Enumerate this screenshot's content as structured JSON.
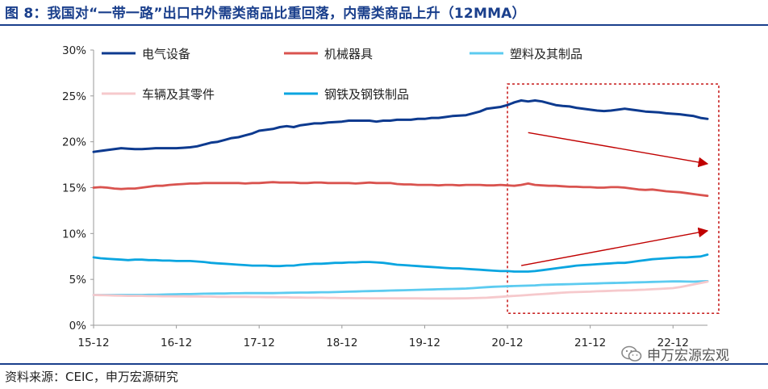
{
  "figure": {
    "title": "图 8：我国对“一带一路”出口中外需类商品比重回落，内需类商品上升（12MMA）",
    "source": "资料来源：CEIC，申万宏源研究",
    "watermark": "申万宏源宏观",
    "watermark_icon": "wechat-icon"
  },
  "chart_data": {
    "type": "line",
    "ylim": [
      0,
      30
    ],
    "yticks": [
      "0%",
      "5%",
      "10%",
      "15%",
      "20%",
      "25%",
      "30%"
    ],
    "ytick_values": [
      0,
      5,
      10,
      15,
      20,
      25,
      30
    ],
    "xticks": [
      "15-12",
      "16-12",
      "17-12",
      "18-12",
      "19-12",
      "20-12",
      "21-12",
      "22-12"
    ],
    "x_months": [
      "2015-12",
      "2016-01",
      "2016-02",
      "2016-03",
      "2016-04",
      "2016-05",
      "2016-06",
      "2016-07",
      "2016-08",
      "2016-09",
      "2016-10",
      "2016-11",
      "2016-12",
      "2017-01",
      "2017-02",
      "2017-03",
      "2017-04",
      "2017-05",
      "2017-06",
      "2017-07",
      "2017-08",
      "2017-09",
      "2017-10",
      "2017-11",
      "2017-12",
      "2018-01",
      "2018-02",
      "2018-03",
      "2018-04",
      "2018-05",
      "2018-06",
      "2018-07",
      "2018-08",
      "2018-09",
      "2018-10",
      "2018-11",
      "2018-12",
      "2019-01",
      "2019-02",
      "2019-03",
      "2019-04",
      "2019-05",
      "2019-06",
      "2019-07",
      "2019-08",
      "2019-09",
      "2019-10",
      "2019-11",
      "2019-12",
      "2020-01",
      "2020-02",
      "2020-03",
      "2020-04",
      "2020-05",
      "2020-06",
      "2020-07",
      "2020-08",
      "2020-09",
      "2020-10",
      "2020-11",
      "2020-12",
      "2021-01",
      "2021-02",
      "2021-03",
      "2021-04",
      "2021-05",
      "2021-06",
      "2021-07",
      "2021-08",
      "2021-09",
      "2021-10",
      "2021-11",
      "2021-12",
      "2022-01",
      "2022-02",
      "2022-03",
      "2022-04",
      "2022-05",
      "2022-06",
      "2022-07",
      "2022-08",
      "2022-09",
      "2022-10",
      "2022-11",
      "2022-12",
      "2023-01",
      "2023-02",
      "2023-03",
      "2023-04",
      "2023-05"
    ],
    "series": [
      {
        "name": "电气设备",
        "color": "#0d3a8f",
        "values": [
          18.9,
          19.0,
          19.1,
          19.2,
          19.3,
          19.25,
          19.2,
          19.2,
          19.25,
          19.3,
          19.3,
          19.3,
          19.3,
          19.35,
          19.4,
          19.5,
          19.7,
          19.9,
          20.0,
          20.2,
          20.4,
          20.5,
          20.7,
          20.9,
          21.2,
          21.3,
          21.4,
          21.6,
          21.7,
          21.6,
          21.8,
          21.9,
          22.0,
          22.0,
          22.1,
          22.15,
          22.2,
          22.3,
          22.3,
          22.3,
          22.3,
          22.2,
          22.3,
          22.3,
          22.4,
          22.4,
          22.4,
          22.5,
          22.5,
          22.6,
          22.6,
          22.7,
          22.8,
          22.85,
          22.9,
          23.1,
          23.3,
          23.6,
          23.7,
          23.8,
          24.0,
          24.3,
          24.5,
          24.4,
          24.5,
          24.4,
          24.2,
          24.0,
          23.9,
          23.85,
          23.7,
          23.6,
          23.5,
          23.4,
          23.35,
          23.4,
          23.5,
          23.6,
          23.5,
          23.4,
          23.3,
          23.25,
          23.2,
          23.1,
          23.05,
          23.0,
          22.9,
          22.8,
          22.6,
          22.5
        ]
      },
      {
        "name": "机械器具",
        "color": "#d9534f",
        "values": [
          15.0,
          15.05,
          15.0,
          14.9,
          14.85,
          14.9,
          14.9,
          15.0,
          15.1,
          15.2,
          15.2,
          15.3,
          15.35,
          15.4,
          15.45,
          15.45,
          15.5,
          15.5,
          15.5,
          15.5,
          15.5,
          15.5,
          15.45,
          15.5,
          15.5,
          15.55,
          15.6,
          15.55,
          15.55,
          15.55,
          15.5,
          15.5,
          15.55,
          15.55,
          15.5,
          15.5,
          15.5,
          15.5,
          15.45,
          15.5,
          15.55,
          15.5,
          15.5,
          15.5,
          15.4,
          15.35,
          15.35,
          15.3,
          15.3,
          15.3,
          15.25,
          15.3,
          15.3,
          15.25,
          15.3,
          15.3,
          15.3,
          15.25,
          15.25,
          15.3,
          15.25,
          15.2,
          15.3,
          15.45,
          15.3,
          15.25,
          15.2,
          15.2,
          15.15,
          15.1,
          15.1,
          15.05,
          15.05,
          15.0,
          15.0,
          15.05,
          15.05,
          15.0,
          14.9,
          14.8,
          14.75,
          14.8,
          14.7,
          14.6,
          14.55,
          14.5,
          14.4,
          14.3,
          14.2,
          14.1
        ]
      },
      {
        "name": "塑料及其制品",
        "color": "#5ccbf0",
        "values": [
          3.3,
          3.3,
          3.3,
          3.3,
          3.3,
          3.3,
          3.3,
          3.3,
          3.32,
          3.32,
          3.34,
          3.36,
          3.38,
          3.4,
          3.4,
          3.42,
          3.44,
          3.45,
          3.46,
          3.46,
          3.48,
          3.48,
          3.5,
          3.5,
          3.5,
          3.5,
          3.5,
          3.52,
          3.54,
          3.55,
          3.56,
          3.56,
          3.58,
          3.6,
          3.6,
          3.62,
          3.64,
          3.66,
          3.68,
          3.7,
          3.72,
          3.74,
          3.76,
          3.78,
          3.8,
          3.82,
          3.84,
          3.86,
          3.88,
          3.9,
          3.92,
          3.94,
          3.96,
          3.98,
          4.0,
          4.05,
          4.1,
          4.15,
          4.2,
          4.22,
          4.25,
          4.28,
          4.3,
          4.32,
          4.35,
          4.4,
          4.42,
          4.44,
          4.46,
          4.48,
          4.5,
          4.52,
          4.54,
          4.56,
          4.58,
          4.6,
          4.62,
          4.64,
          4.66,
          4.68,
          4.7,
          4.72,
          4.74,
          4.76,
          4.78,
          4.78,
          4.76,
          4.75,
          4.78,
          4.8
        ]
      },
      {
        "name": "车辆及其零件",
        "color": "#f6c9cc",
        "values": [
          3.3,
          3.28,
          3.26,
          3.24,
          3.22,
          3.2,
          3.2,
          3.2,
          3.18,
          3.18,
          3.16,
          3.16,
          3.15,
          3.15,
          3.14,
          3.14,
          3.12,
          3.12,
          3.1,
          3.1,
          3.1,
          3.1,
          3.1,
          3.08,
          3.08,
          3.06,
          3.06,
          3.04,
          3.04,
          3.02,
          3.02,
          3.0,
          3.0,
          3.0,
          2.98,
          2.98,
          2.96,
          2.96,
          2.95,
          2.95,
          2.94,
          2.94,
          2.94,
          2.94,
          2.93,
          2.93,
          2.93,
          2.93,
          2.92,
          2.92,
          2.92,
          2.92,
          2.92,
          2.93,
          2.94,
          2.96,
          2.98,
          3.0,
          3.05,
          3.1,
          3.15,
          3.2,
          3.25,
          3.3,
          3.35,
          3.4,
          3.45,
          3.5,
          3.55,
          3.6,
          3.62,
          3.64,
          3.66,
          3.7,
          3.72,
          3.75,
          3.78,
          3.8,
          3.82,
          3.85,
          3.88,
          3.92,
          3.96,
          4.0,
          4.05,
          4.15,
          4.3,
          4.45,
          4.6,
          4.75
        ]
      },
      {
        "name": "钢铁及钢铁制品",
        "color": "#0aa5e0",
        "values": [
          7.4,
          7.3,
          7.25,
          7.2,
          7.15,
          7.1,
          7.15,
          7.15,
          7.1,
          7.1,
          7.05,
          7.05,
          7.0,
          7.0,
          7.0,
          6.95,
          6.9,
          6.8,
          6.75,
          6.7,
          6.65,
          6.6,
          6.55,
          6.5,
          6.5,
          6.5,
          6.45,
          6.45,
          6.5,
          6.5,
          6.6,
          6.65,
          6.7,
          6.7,
          6.75,
          6.8,
          6.8,
          6.85,
          6.85,
          6.9,
          6.9,
          6.85,
          6.8,
          6.7,
          6.6,
          6.55,
          6.5,
          6.45,
          6.4,
          6.35,
          6.3,
          6.25,
          6.2,
          6.2,
          6.15,
          6.1,
          6.05,
          6.0,
          5.95,
          5.9,
          5.9,
          5.85,
          5.85,
          5.85,
          5.9,
          6.0,
          6.1,
          6.2,
          6.3,
          6.4,
          6.5,
          6.55,
          6.6,
          6.65,
          6.7,
          6.75,
          6.8,
          6.8,
          6.9,
          7.0,
          7.1,
          7.2,
          7.25,
          7.3,
          7.35,
          7.4,
          7.4,
          7.45,
          7.5,
          7.7
        ]
      }
    ],
    "legend": [
      "电气设备",
      "机械器具",
      "塑料及其制品",
      "车辆及其零件",
      "钢铁及钢铁制品"
    ],
    "legend_placement": "top",
    "grid": false,
    "annotation": {
      "box": {
        "from_month": "2020-12",
        "to_month": "2023-05",
        "ymin": 1.3,
        "ymax": 26.3,
        "color": "#c00000"
      },
      "arrow_down": {
        "from": [
          "2021-03",
          21.0
        ],
        "to": [
          "2023-05",
          17.6
        ],
        "color": "#c00000"
      },
      "arrow_up": {
        "from": [
          "2021-02",
          6.5
        ],
        "to": [
          "2023-05",
          10.3
        ],
        "color": "#c00000"
      }
    }
  }
}
